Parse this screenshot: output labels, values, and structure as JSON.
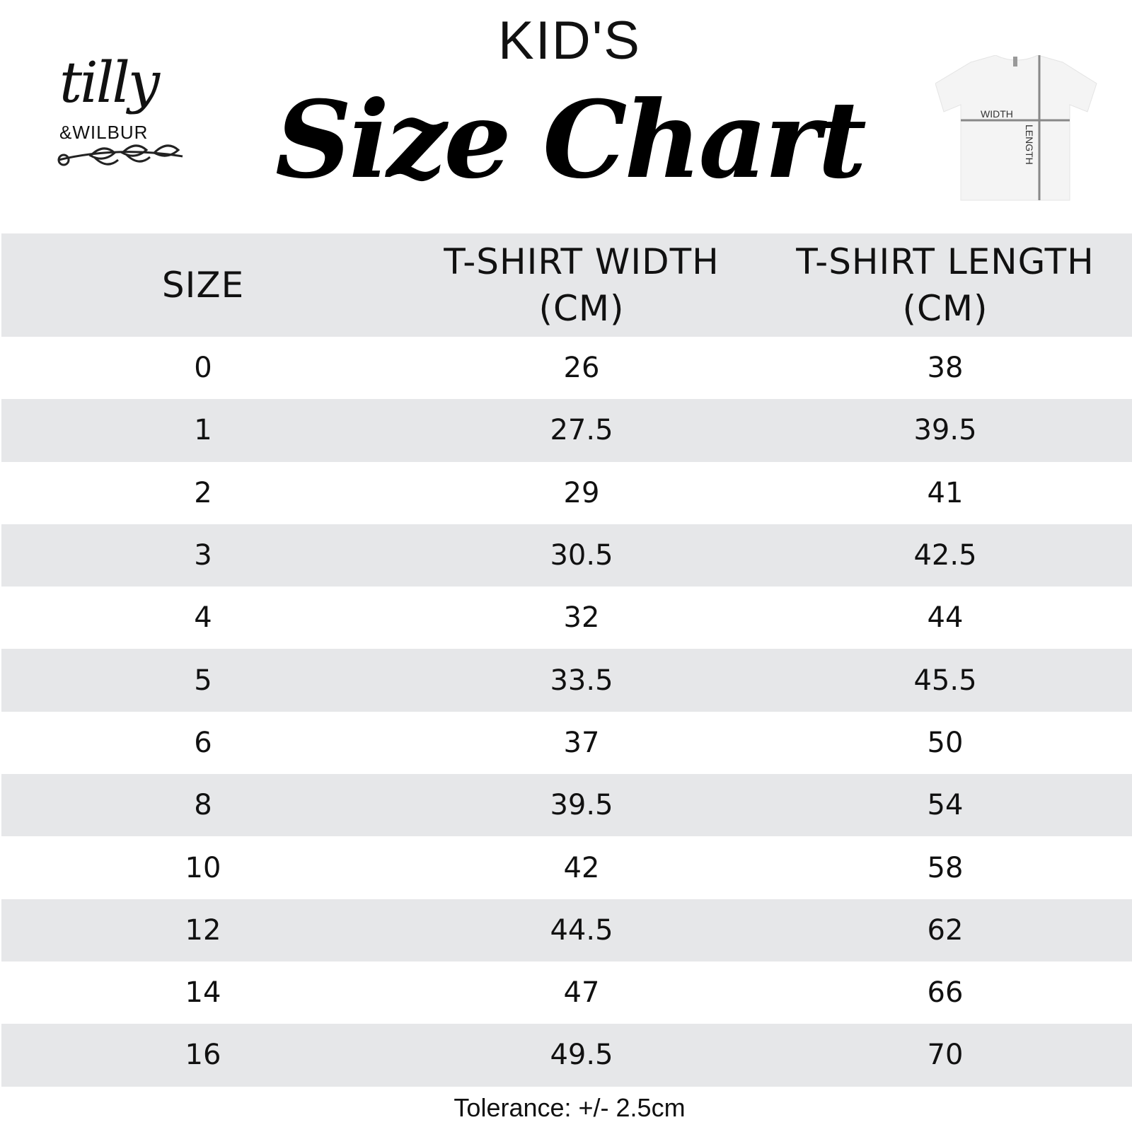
{
  "logo": {
    "line1": "tilly",
    "line2": "&WILBUR"
  },
  "header": {
    "kicker": "KID'S",
    "title": "Size Chart"
  },
  "diagram": {
    "width_label": "WIDTH",
    "length_label": "LENGTH"
  },
  "table": {
    "headers": [
      "SIZE",
      "T-SHIRT WIDTH (CM)",
      "T-SHIRT LENGTH (CM)"
    ],
    "rows": [
      [
        "0",
        "26",
        "38"
      ],
      [
        "1",
        "27.5",
        "39.5"
      ],
      [
        "2",
        "29",
        "41"
      ],
      [
        "3",
        "30.5",
        "42.5"
      ],
      [
        "4",
        "32",
        "44"
      ],
      [
        "5",
        "33.5",
        "45.5"
      ],
      [
        "6",
        "37",
        "50"
      ],
      [
        "8",
        "39.5",
        "54"
      ],
      [
        "10",
        "42",
        "58"
      ],
      [
        "12",
        "44.5",
        "62"
      ],
      [
        "14",
        "47",
        "66"
      ],
      [
        "16",
        "49.5",
        "70"
      ]
    ]
  },
  "footer": {
    "tolerance": "Tolerance: +/- 2.5cm"
  },
  "colors": {
    "row_alt": "#e6e7e9",
    "text": "#111111"
  }
}
